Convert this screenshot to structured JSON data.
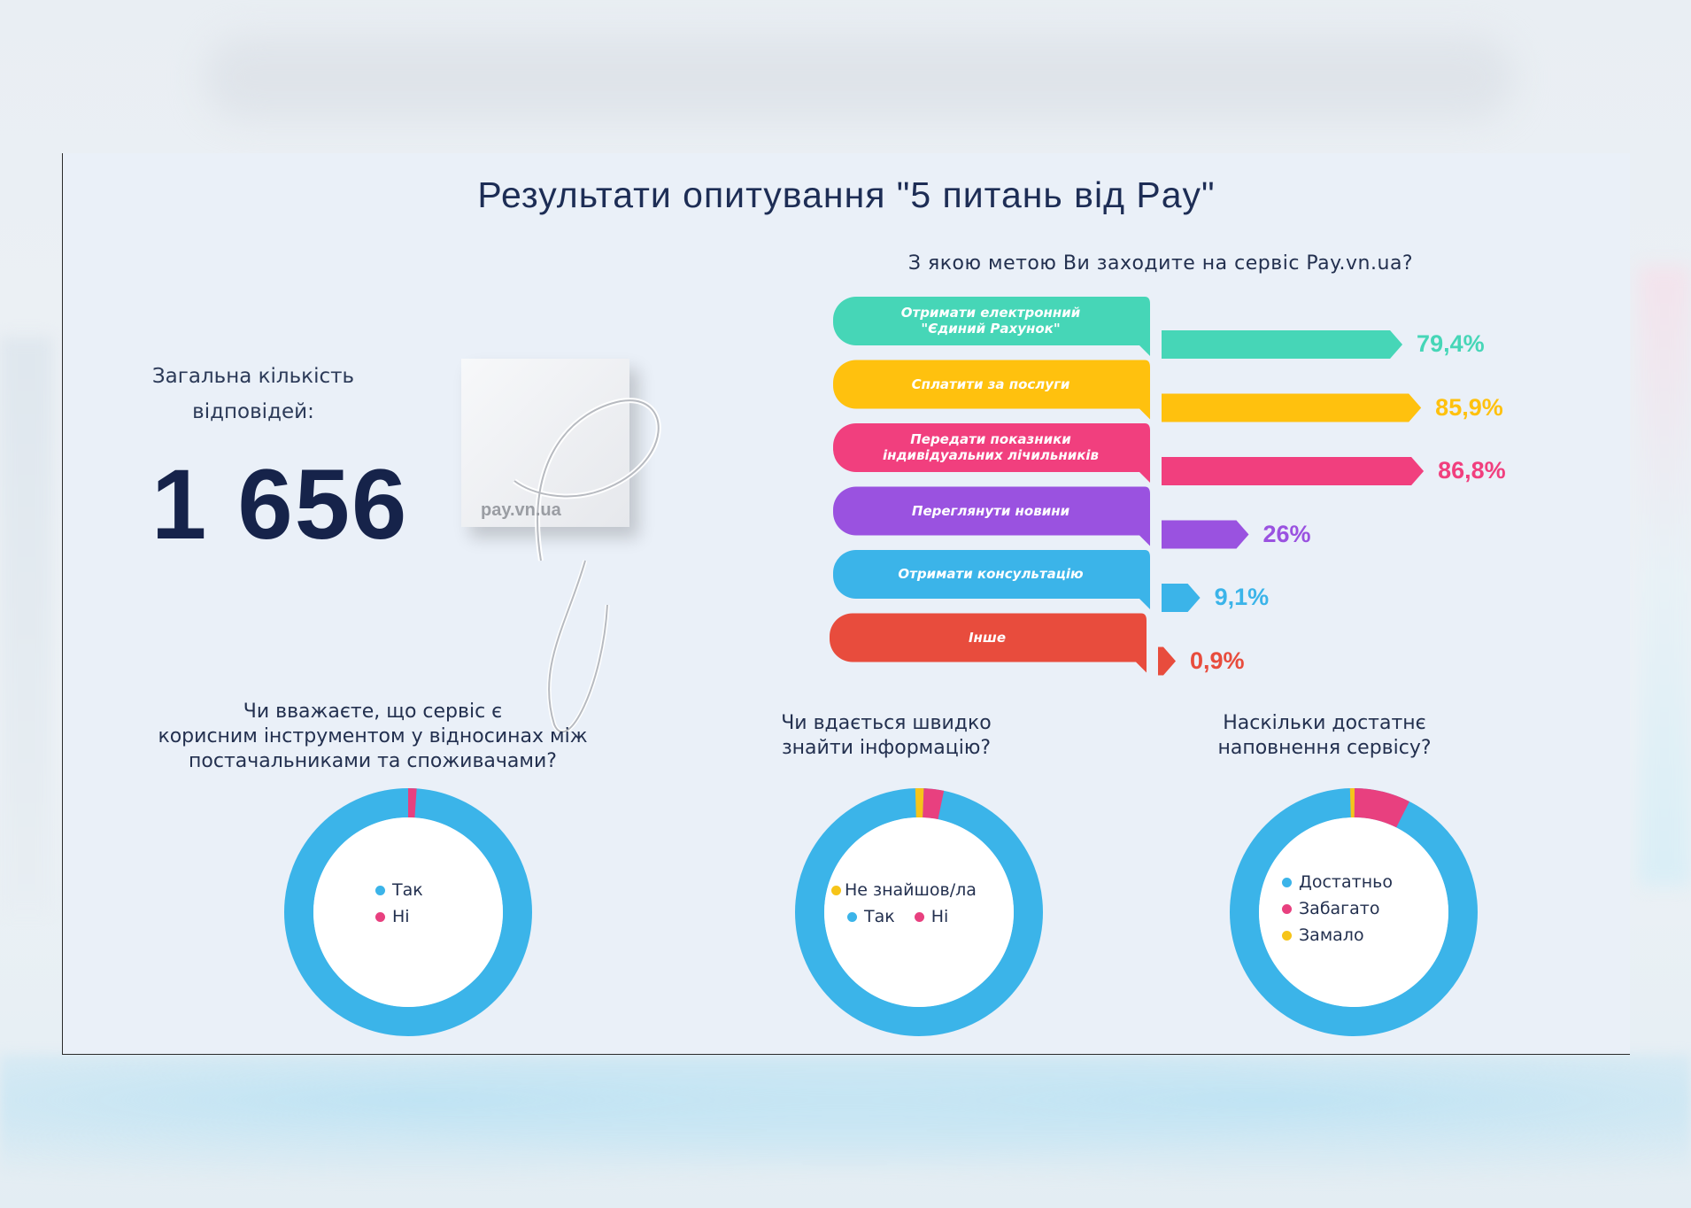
{
  "title": "Результати опитування \"5 питань від Pay\"",
  "total": {
    "label": "Загальна кількість відповідей:",
    "value": "1 656"
  },
  "logo": {
    "text": "pay.vn.ua",
    "script": "Pay"
  },
  "colors": {
    "teal": "#46d6b7",
    "yellow": "#ffc10e",
    "pink": "#f13f7e",
    "purple": "#9a52e0",
    "blue": "#3bb4e9",
    "red": "#e84c3d",
    "donut_blue": "#3bb4e9",
    "donut_pink": "#e8407f",
    "donut_yellow": "#f6c419"
  },
  "chart_data": [
    {
      "type": "bar",
      "title": "З якою метою Ви заходите на сервіс Pay.vn.ua?",
      "categories": [
        "Отримати електронний \"Єдиний Рахунок\"",
        "Сплатити за послуги",
        "Передати показники індивідуальних лічильників",
        "Переглянути новини",
        "Отримати консультацію",
        "Інше"
      ],
      "values": [
        79.4,
        85.9,
        86.8,
        26,
        9.1,
        0.9
      ],
      "value_labels": [
        "79,4%",
        "85,9%",
        "86,8%",
        "26%",
        "9,1%",
        "0,9%"
      ],
      "colors": [
        "#46d6b7",
        "#ffc10e",
        "#f13f7e",
        "#9a52e0",
        "#3bb4e9",
        "#e84c3d"
      ]
    },
    {
      "type": "pie",
      "title": "Чи вважаєте, що сервіс є корисним інструментом у відносинах між постачальниками та споживачами?",
      "labels": [
        "Так",
        "Ні"
      ],
      "values": [
        98.9,
        1.1
      ],
      "colors": [
        "#3bb4e9",
        "#e8407f"
      ]
    },
    {
      "type": "pie",
      "title": "Чи вдається швидко знайти інформацію?",
      "labels": [
        "Так",
        "Ні",
        "Не знайшов/ла"
      ],
      "values": [
        96.3,
        2.6,
        1.1
      ],
      "colors": [
        "#3bb4e9",
        "#e8407f",
        "#f6c419"
      ]
    },
    {
      "type": "pie",
      "title": "Наскільки достатнє наповнення сервісу?",
      "labels": [
        "Достатньо",
        "Забагато",
        "Замало"
      ],
      "values": [
        92.1,
        7.3,
        0.6
      ],
      "colors": [
        "#3bb4e9",
        "#e8407f",
        "#f6c419"
      ]
    }
  ],
  "pies": [
    {
      "q_lines": [
        "Чи вважаєте, що сервіс є",
        "корисним інструментом у відносинах між",
        "постачальниками та споживачами?"
      ],
      "legend": [
        "Так",
        "Ні"
      ]
    },
    {
      "q_lines": [
        "Чи вдається швидко",
        "знайти інформацію?"
      ],
      "legend": [
        "Не знайшов/ла",
        "Так",
        "Ні"
      ]
    },
    {
      "q_lines": [
        "Наскільки достатнє",
        "наповнення сервісу?"
      ],
      "legend": [
        "Достатньо",
        "Забагато",
        "Замало"
      ]
    }
  ]
}
